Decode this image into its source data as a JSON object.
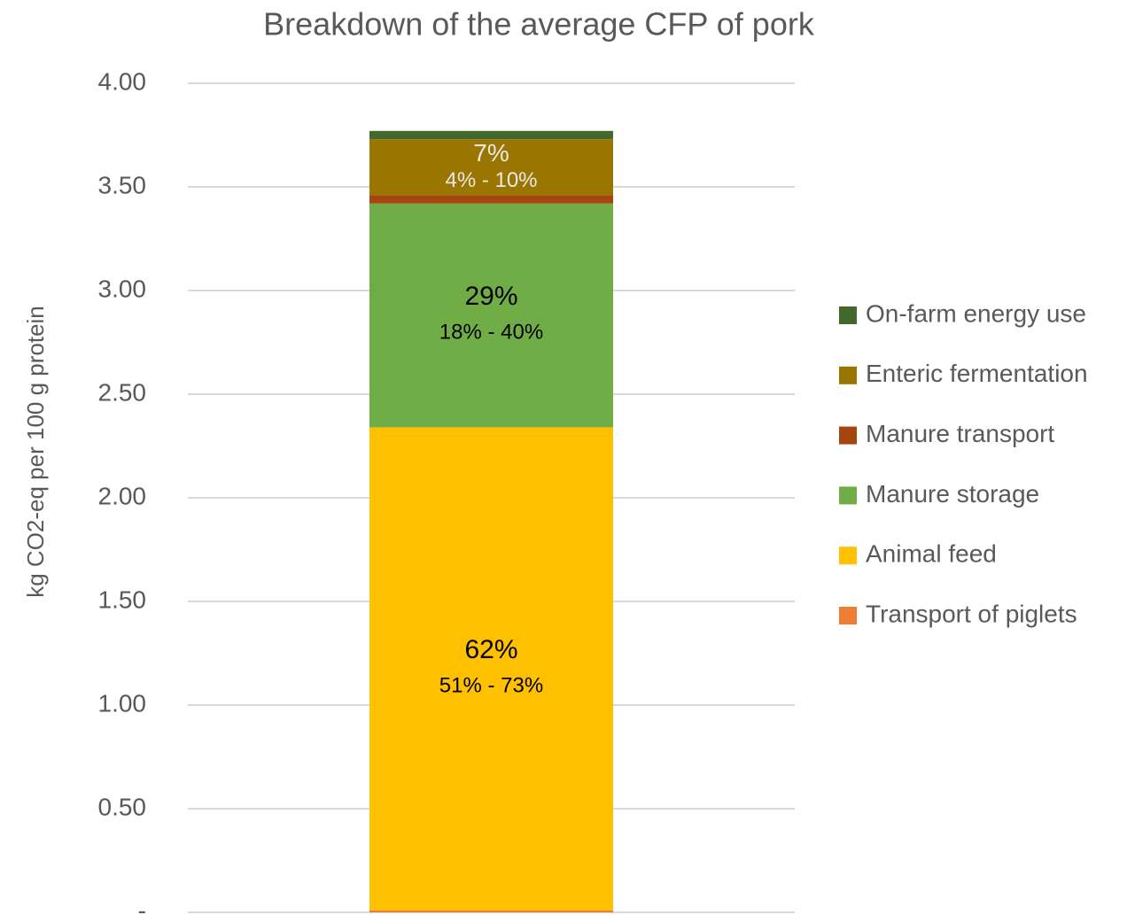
{
  "chart_data": {
    "type": "stacked-bar",
    "title": "Breakdown of the average CFP of pork",
    "y_axis_label": "kg CO2-eq per 100 g protein",
    "categories": [
      null
    ],
    "series": [
      {
        "name": "Transport of piglets",
        "color": "#ed7d31",
        "values": [
          0.01
        ]
      },
      {
        "name": "Animal feed",
        "color": "#ffc000",
        "values": [
          2.33
        ],
        "share_label": "62%",
        "range_label": "51% - 73%",
        "label_color": "#000000"
      },
      {
        "name": "Manure storage",
        "color": "#70ad47",
        "values": [
          1.08
        ],
        "share_label": "29%",
        "range_label": "18% - 40%",
        "label_color": "#000000"
      },
      {
        "name": "Manure transport",
        "color": "#a5460f",
        "values": [
          0.04
        ]
      },
      {
        "name": "Enteric fermentation",
        "color": "#9a7500",
        "values": [
          0.27
        ],
        "share_label": "7%",
        "range_label": "4% - 10%",
        "label_color": "#e8e8e8"
      },
      {
        "name": "On-farm energy use",
        "color": "#43682b",
        "values": [
          0.04
        ]
      }
    ],
    "ylim": [
      0,
      4
    ],
    "yticks": [
      {
        "value": 0,
        "label": "-"
      },
      {
        "value": 0.5,
        "label": "0.50"
      },
      {
        "value": 1,
        "label": "1.00"
      },
      {
        "value": 1.5,
        "label": "1.50"
      },
      {
        "value": 2,
        "label": "2.00"
      },
      {
        "value": 2.5,
        "label": "2.50"
      },
      {
        "value": 3,
        "label": "3.00"
      },
      {
        "value": 3.5,
        "label": "3.50"
      },
      {
        "value": 4,
        "label": "4.00"
      }
    ],
    "grid": true,
    "legend": "right"
  }
}
